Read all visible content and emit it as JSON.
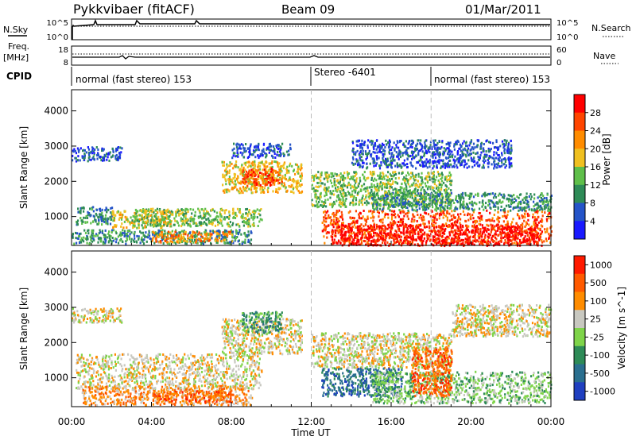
{
  "header": {
    "station": "Pykkvibaer (fitACF)",
    "beam": "Beam 09",
    "date": "01/Mar/2011"
  },
  "nsky": {
    "label": "N.Sky",
    "search_label": "N.Search",
    "ticks_left": [
      "10^5",
      "10^0"
    ],
    "ticks_right": [
      "10^5",
      "10^0"
    ]
  },
  "freq": {
    "label_1": "Freq.",
    "label_2": "[MHz]",
    "nave_label": "Nave",
    "ticks_left": [
      "18",
      "8"
    ],
    "ticks_right": [
      "60",
      "0"
    ]
  },
  "cpid": {
    "label": "CPID",
    "segments": [
      {
        "start_hour": 0,
        "text": "normal (fast stereo) 153"
      },
      {
        "start_hour": 12,
        "text": "Stereo -6401"
      },
      {
        "start_hour": 18,
        "text": "normal (fast stereo) 153"
      }
    ]
  },
  "chart_data": [
    {
      "type": "heatmap",
      "ylabel": "Slant Range [km]",
      "ylim": [
        180,
        4600
      ],
      "yticks": [
        "1000",
        "2000",
        "3000",
        "4000"
      ],
      "xlim_hours": [
        0,
        24
      ],
      "colorbar": {
        "label": "Power [dB]",
        "ticks": [
          "4",
          "8",
          "12",
          "16",
          "20",
          "24",
          "28"
        ],
        "colors": [
          "#1a1aff",
          "#2554c8",
          "#2e8b57",
          "#5fbf4a",
          "#f0c020",
          "#ff8c00",
          "#ff4500",
          "#ff0000"
        ]
      },
      "regions": [
        {
          "t": [
            0.0,
            2.5
          ],
          "r": [
            2600,
            3000
          ],
          "level": 1
        },
        {
          "t": [
            0.2,
            2.0
          ],
          "r": [
            800,
            1300
          ],
          "level": 2
        },
        {
          "t": [
            2.0,
            5.0
          ],
          "r": [
            700,
            1200
          ],
          "level": 4
        },
        {
          "t": [
            0.0,
            9.0
          ],
          "r": [
            250,
            650
          ],
          "level": 2
        },
        {
          "t": [
            3.0,
            9.5
          ],
          "r": [
            750,
            1250
          ],
          "level": 3
        },
        {
          "t": [
            4.0,
            8.0
          ],
          "r": [
            300,
            600
          ],
          "level": 5
        },
        {
          "t": [
            7.5,
            11.5
          ],
          "r": [
            1700,
            2600
          ],
          "level": 4
        },
        {
          "t": [
            8.5,
            10.5
          ],
          "r": [
            1900,
            2400
          ],
          "level": 6
        },
        {
          "t": [
            8.0,
            11.0
          ],
          "r": [
            2700,
            3100
          ],
          "level": 1
        },
        {
          "t": [
            12.0,
            19.0
          ],
          "r": [
            1300,
            2300
          ],
          "level": 3
        },
        {
          "t": [
            12.5,
            24.0
          ],
          "r": [
            250,
            1200
          ],
          "level": 6
        },
        {
          "t": [
            13.0,
            23.5
          ],
          "r": [
            200,
            800
          ],
          "level": 7
        },
        {
          "t": [
            15.0,
            24.0
          ],
          "r": [
            1200,
            1700
          ],
          "level": 2
        },
        {
          "t": [
            14.0,
            22.0
          ],
          "r": [
            2400,
            3200
          ],
          "level": 1
        }
      ]
    },
    {
      "type": "heatmap",
      "ylabel": "Slant Range [km]",
      "ylim": [
        180,
        4600
      ],
      "yticks": [
        "1000",
        "2000",
        "3000",
        "4000"
      ],
      "xlabel": "Time UT",
      "xticks": [
        "00:00",
        "04:00",
        "08:00",
        "12:00",
        "16:00",
        "20:00",
        "00:00"
      ],
      "xlim_hours": [
        0,
        24
      ],
      "colorbar": {
        "label": "Velocity [m s^-1]",
        "ticks": [
          "1000",
          "500",
          "100",
          "25",
          "-25",
          "-100",
          "-500",
          "-1000"
        ],
        "colors": [
          "#2040c0",
          "#2a6f8f",
          "#2e8b57",
          "#7fd44a",
          "#c8c8c0",
          "#ff8c00",
          "#ff5a00",
          "#ff1a00"
        ]
      },
      "regions": [
        {
          "t": [
            0.0,
            2.5
          ],
          "r": [
            2600,
            3000
          ],
          "level": 4
        },
        {
          "t": [
            0.2,
            9.5
          ],
          "r": [
            700,
            1700
          ],
          "level": 4
        },
        {
          "t": [
            0.5,
            9.0
          ],
          "r": [
            250,
            800
          ],
          "level": 5
        },
        {
          "t": [
            4.0,
            8.0
          ],
          "r": [
            350,
            650
          ],
          "level": 6
        },
        {
          "t": [
            7.5,
            11.5
          ],
          "r": [
            1700,
            2700
          ],
          "level": 4
        },
        {
          "t": [
            8.5,
            10.5
          ],
          "r": [
            2300,
            2900
          ],
          "level": 2
        },
        {
          "t": [
            12.0,
            19.0
          ],
          "r": [
            1300,
            2300
          ],
          "level": 4
        },
        {
          "t": [
            12.5,
            16.5
          ],
          "r": [
            500,
            1300
          ],
          "level": 1
        },
        {
          "t": [
            15.0,
            24.0
          ],
          "r": [
            300,
            1200
          ],
          "level": 3
        },
        {
          "t": [
            17.0,
            19.0
          ],
          "r": [
            500,
            1900
          ],
          "level": 6
        },
        {
          "t": [
            19.0,
            24.0
          ],
          "r": [
            2200,
            3100
          ],
          "level": 4
        }
      ]
    }
  ]
}
